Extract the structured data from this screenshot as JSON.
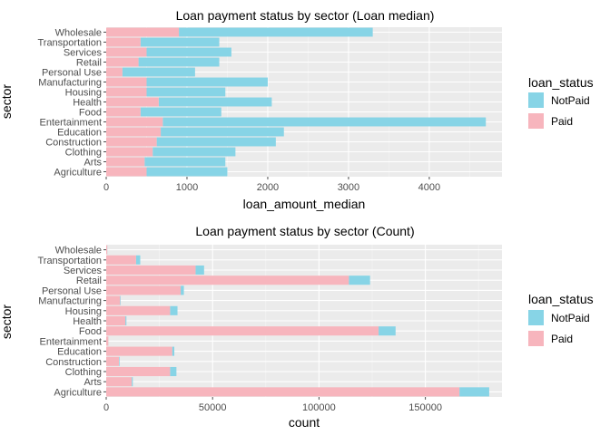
{
  "colors": {
    "NotPaid": "#87D4E6",
    "Paid": "#F7B5BD",
    "panel": "#EBEBEB",
    "grid_major": "#FFFFFF",
    "grid_minor": "#F5F5F5",
    "tick": "#4D4D4D"
  },
  "legend": {
    "title": "loan_status",
    "items": [
      "NotPaid",
      "Paid"
    ]
  },
  "chart_data": [
    {
      "type": "bar",
      "orientation": "horizontal",
      "stacked": true,
      "title": "Loan payment status by sector (Loan median)",
      "xlabel": "loan_amount_median",
      "ylabel": "sector",
      "xlim": [
        0,
        4900
      ],
      "xticks": [
        0,
        1000,
        2000,
        3000,
        4000
      ],
      "xtick_labels": [
        "0",
        "1000",
        "2000",
        "3000",
        "4000"
      ],
      "categories": [
        "Agriculture",
        "Arts",
        "Clothing",
        "Construction",
        "Education",
        "Entertainment",
        "Food",
        "Health",
        "Housing",
        "Manufacturing",
        "Personal Use",
        "Retail",
        "Services",
        "Transportation",
        "Wholesale"
      ],
      "series": [
        {
          "name": "Paid",
          "values": [
            500,
            475,
            575,
            625,
            675,
            700,
            425,
            650,
            500,
            500,
            200,
            400,
            500,
            425,
            900
          ]
        },
        {
          "name": "NotPaid",
          "values": [
            1000,
            1000,
            1025,
            1475,
            1525,
            4000,
            1000,
            1400,
            975,
            1500,
            900,
            1000,
            1050,
            975,
            2400
          ]
        }
      ],
      "legend_position": "right"
    },
    {
      "type": "bar",
      "orientation": "horizontal",
      "stacked": true,
      "title": "Loan payment status by sector (Count)",
      "xlabel": "count",
      "ylabel": "sector",
      "xlim": [
        0,
        186000
      ],
      "xticks": [
        0,
        50000,
        100000,
        150000
      ],
      "xtick_labels": [
        "0",
        "50000",
        "100000",
        "150000"
      ],
      "categories": [
        "Agriculture",
        "Arts",
        "Clothing",
        "Construction",
        "Education",
        "Entertainment",
        "Food",
        "Health",
        "Housing",
        "Manufacturing",
        "Personal Use",
        "Retail",
        "Services",
        "Transportation",
        "Wholesale"
      ],
      "series": [
        {
          "name": "Paid",
          "values": [
            166000,
            12000,
            30000,
            6000,
            31000,
            1000,
            128000,
            9000,
            30000,
            6500,
            35000,
            114000,
            42000,
            14000,
            500
          ]
        },
        {
          "name": "NotPaid",
          "values": [
            14000,
            500,
            3000,
            300,
            1000,
            50,
            8000,
            500,
            3500,
            300,
            1500,
            10000,
            4000,
            2000,
            50
          ]
        }
      ],
      "legend_position": "right"
    }
  ]
}
